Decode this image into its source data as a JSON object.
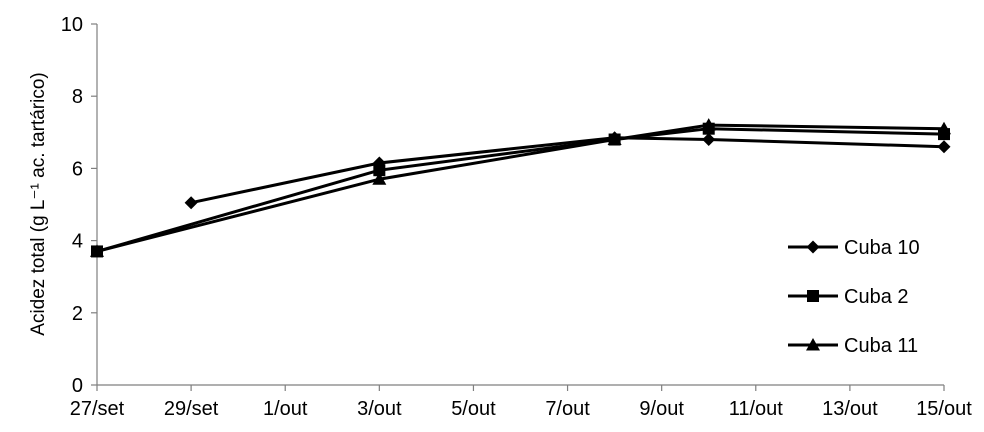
{
  "chart_data": {
    "type": "line",
    "title": "",
    "ylabel": "Acidez total (g L⁻¹ ac. tartárico)",
    "xlabel": "",
    "ylim": [
      0,
      10
    ],
    "yticks": [
      0,
      2,
      4,
      6,
      8,
      10
    ],
    "xlim": [
      "27/set",
      "15/out"
    ],
    "xticks": [
      "27/set",
      "29/set",
      "1/out",
      "3/out",
      "5/out",
      "7/out",
      "9/out",
      "11/out",
      "13/out",
      "15/out"
    ],
    "legend_position": "right",
    "grid": false,
    "series": [
      {
        "name": "Cuba 10",
        "marker": "diamond",
        "color": "#000000",
        "points": [
          [
            "29/set",
            5.05
          ],
          [
            "3/out",
            6.15
          ],
          [
            "8/out",
            6.85
          ],
          [
            "10/out",
            6.8
          ],
          [
            "15/out",
            6.6
          ]
        ]
      },
      {
        "name": "Cuba 2",
        "marker": "square",
        "color": "#000000",
        "points": [
          [
            "27/set",
            3.7
          ],
          [
            "3/out",
            5.95
          ],
          [
            "8/out",
            6.8
          ],
          [
            "10/out",
            7.1
          ],
          [
            "15/out",
            6.95
          ]
        ]
      },
      {
        "name": "Cuba 11",
        "marker": "triangle",
        "color": "#000000",
        "points": [
          [
            "27/set",
            3.7
          ],
          [
            "3/out",
            5.7
          ],
          [
            "8/out",
            6.8
          ],
          [
            "10/out",
            7.2
          ],
          [
            "15/out",
            7.1
          ]
        ]
      }
    ]
  }
}
